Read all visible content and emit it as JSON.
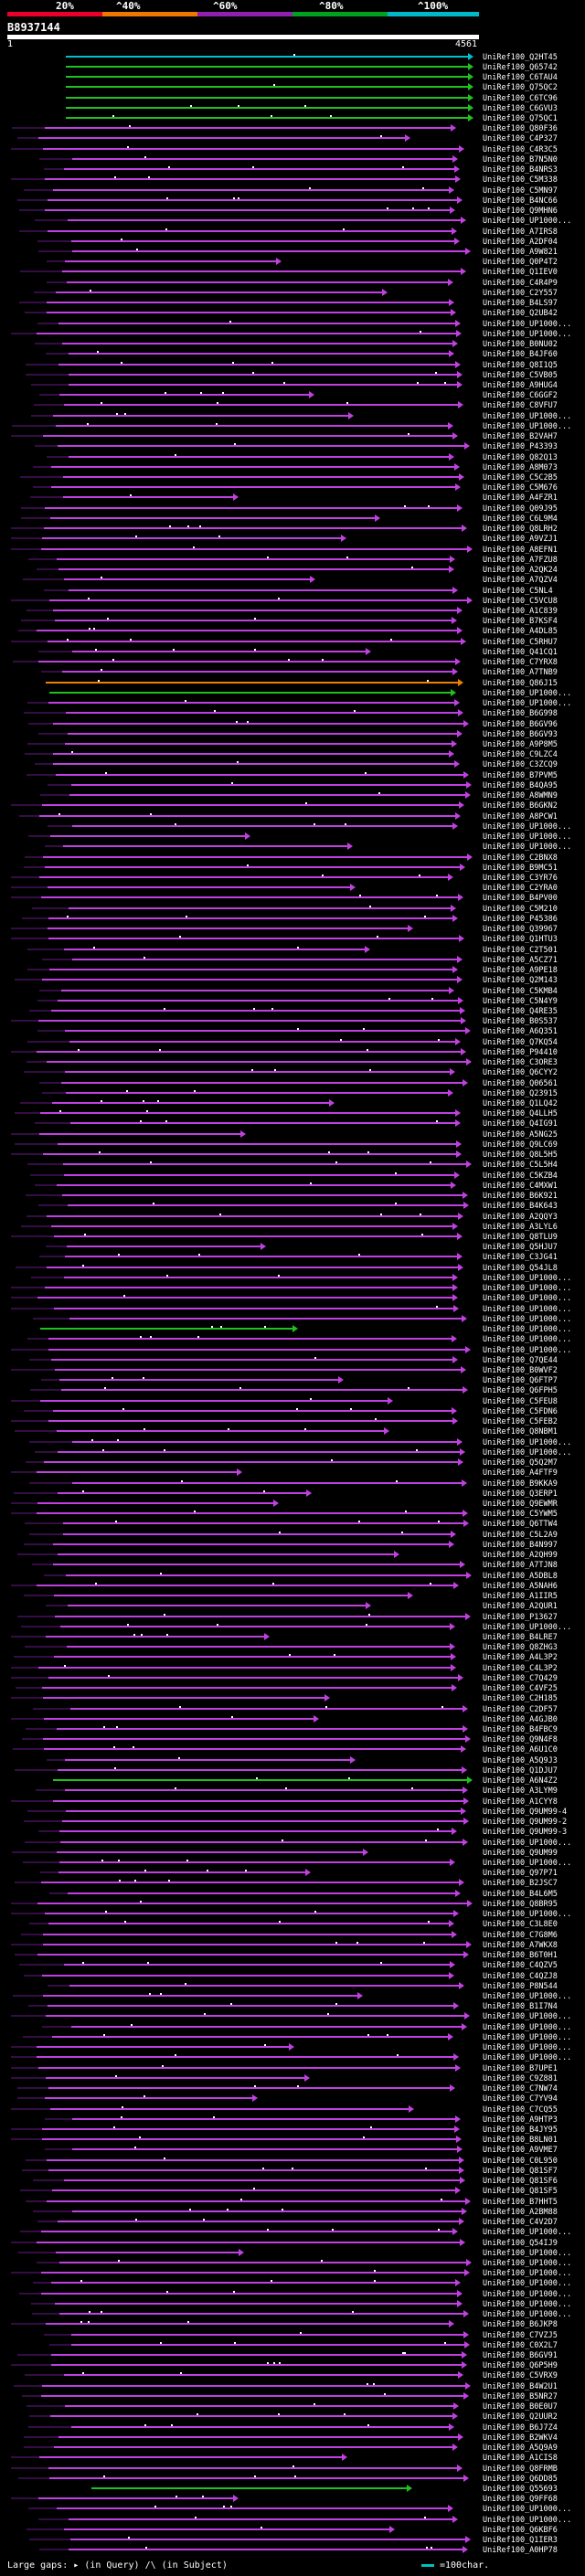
{
  "legend": [
    {
      "label": "20%",
      "color": "#e8002a"
    },
    {
      "label": "^40%",
      "color": "#f07800"
    },
    {
      "label": "^60%",
      "color": "#9020b0"
    },
    {
      "label": "^80%",
      "color": "#00a020"
    },
    {
      "label": "^100%",
      "color": "#00b8c8"
    }
  ],
  "title": "B8937144",
  "ruler": {
    "start": "1",
    "end": "4561"
  },
  "hits": [
    "UniRef100_Q2HT45",
    "UniRef100_Q65742",
    "UniRef100_C6TAU4",
    "UniRef100_Q75QC2",
    "UniRef100_C6TC96",
    "UniRef100_C6GVU3",
    "UniRef100_Q75QC1",
    "UniRef100_Q80F36",
    "UniRef100_C4P327",
    "UniRef100_C4R3C5",
    "UniRef100_B7N5N0",
    "UniRef100_B4NRS3",
    "UniRef100_C5M338",
    "UniRef100_C5MN97",
    "UniRef100_B4NC66",
    "UniRef100_Q9MHN6",
    "UniRef100_UP1000...",
    "UniRef100_A7IRS8",
    "UniRef100_A2DF04",
    "UniRef100_A9W821",
    "UniRef100_Q0P4T2",
    "UniRef100_Q1IEV0",
    "UniRef100_C4R4P9",
    "UniRef100_C2Y557",
    "UniRef100_B4LS97",
    "UniRef100_Q2UB42",
    "UniRef100_UP1000...",
    "UniRef100_UP1000...",
    "UniRef100_B0NU02",
    "UniRef100_B4JF60",
    "UniRef100_Q8I1Q5",
    "UniRef100_C5VB05",
    "UniRef100_A9HUG4",
    "UniRef100_C6GGF2",
    "UniRef100_C8VFU7",
    "UniRef100_UP1000...",
    "UniRef100_UP1000...",
    "UniRef100_B2VAH7",
    "UniRef100_P43393",
    "UniRef100_Q82Q13",
    "UniRef100_A8M073",
    "UniRef100_C5C2B5",
    "UniRef100_C5M676",
    "UniRef100_A4FZR1",
    "UniRef100_Q09J95",
    "UniRef100_C6L9M4",
    "UniRef100_Q8LRH2",
    "UniRef100_A9VZJ1",
    "UniRef100_A8EFN1",
    "UniRef100_A7FZU8",
    "UniRef100_A2QK24",
    "UniRef100_A7QZV4",
    "UniRef100_C5NL4",
    "UniRef100_C5VCU8",
    "UniRef100_A1C839",
    "UniRef100_B7KSF4",
    "UniRef100_A4DL85",
    "UniRef100_C5RHU7",
    "UniRef100_Q41CQ1",
    "UniRef100_C7YRX8",
    "UniRef100_A7TNB9",
    "UniRef100_Q86J15",
    "UniRef100_UP1000...",
    "UniRef100_UP1000...",
    "UniRef100_B6G998",
    "UniRef100_B6GV96",
    "UniRef100_B6GV93",
    "UniRef100_A9P8M5",
    "UniRef100_C9LZC4",
    "UniRef100_C3ZCQ9",
    "UniRef100_B7PVM5",
    "UniRef100_B4QA95",
    "UniRef100_A8WMN9",
    "UniRef100_B6GKN2",
    "UniRef100_A8PCW1",
    "UniRef100_UP1000...",
    "UniRef100_UP1000...",
    "UniRef100_UP1000...",
    "UniRef100_C2BNX8",
    "UniRef100_B9MC51",
    "UniRef100_C3YR76",
    "UniRef100_C2YRA0",
    "UniRef100_B4PV00",
    "UniRef100_C5M210",
    "UniRef100_P45386",
    "UniRef100_Q39967",
    "UniRef100_Q1HTU3",
    "UniRef100_C2T501",
    "UniRef100_A5CZ71",
    "UniRef100_A9PE18",
    "UniRef100_Q2M143",
    "UniRef100_C5KMB4",
    "UniRef100_C5N4Y9",
    "UniRef100_Q4RE35",
    "UniRef100_B0S537",
    "UniRef100_A6Q351",
    "UniRef100_Q7KQ54",
    "UniRef100_P94410",
    "UniRef100_C3ORE3",
    "UniRef100_Q6CYY2",
    "UniRef100_Q06561",
    "UniRef100_Q23915",
    "UniRef100_Q1LQ42",
    "UniRef100_Q4LLH5",
    "UniRef100_Q4IG91",
    "UniRef100_A5NG25",
    "UniRef100_Q9LC69",
    "UniRef100_Q8L5H5",
    "UniRef100_C5L5H4",
    "UniRef100_C5KZB4",
    "UniRef100_C4MXW1",
    "UniRef100_B6K921",
    "UniRef100_B4K643",
    "UniRef100_A2QQY3",
    "UniRef100_A3LYL6",
    "UniRef100_Q8TLU9",
    "UniRef100_Q5HJU7",
    "UniRef100_C3JG41",
    "UniRef100_Q54JL8",
    "UniRef100_UP1000...",
    "UniRef100_UP1000...",
    "UniRef100_UP1000...",
    "UniRef100_UP1000...",
    "UniRef100_UP1000...",
    "UniRef100_UP1000...",
    "UniRef100_UP1000...",
    "UniRef100_UP1000...",
    "UniRef100_Q7QE44",
    "UniRef100_B0WVF2",
    "UniRef100_Q6FTP7",
    "UniRef100_Q6FPH5",
    "UniRef100_C5FEU8",
    "UniRef100_C5FDN6",
    "UniRef100_C5FEB2",
    "UniRef100_Q8NBM1",
    "UniRef100_UP1000...",
    "UniRef100_UP1000...",
    "UniRef100_Q5Q2M7",
    "UniRef100_A4FTF9",
    "UniRef100_B9KKA9",
    "UniRef100_Q3ERP1",
    "UniRef100_Q9EWMR",
    "UniRef100_C5YWM5",
    "UniRef100_Q6TTW4",
    "UniRef100_C5L2A9",
    "UniRef100_B4N997",
    "UniRef100_A2QH99",
    "UniRef100_A7TJN8",
    "UniRef100_A5DBL8",
    "UniRef100_A5NAH6",
    "UniRef100_A1IIR5",
    "UniRef100_A2QUR1",
    "UniRef100_P13627",
    "UniRef100_UP1000...",
    "UniRef100_B4LRE7",
    "UniRef100_Q8ZHG3",
    "UniRef100_A4L3P2",
    "UniRef100_C4L3P2",
    "UniRef100_C7Q429",
    "UniRef100_C4VF25",
    "UniRef100_C2H185",
    "UniRef100_C2DF57",
    "UniRef100_A4GJB0",
    "UniRef100_B4FBC9",
    "UniRef100_Q9N4F8",
    "UniRef100_A6U1C0",
    "UniRef100_A5Q9J3",
    "UniRef100_Q1DJU7",
    "UniRef100_A6N4Z2",
    "UniRef100_A3LYM9",
    "UniRef100_A1CYY8",
    "UniRef100_Q9UM99-4",
    "UniRef100_Q9UM99-2",
    "UniRef100_Q9UM99-3",
    "UniRef100_UP1000...",
    "UniRef100_Q9UM99",
    "UniRef100_UP1000...",
    "UniRef100_Q97P71",
    "UniRef100_B2JSC7",
    "UniRef100_B4L6M5",
    "UniRef100_Q8BR95",
    "UniRef100_UP1000...",
    "UniRef100_C3L8E0",
    "UniRef100_C7G8M6",
    "UniRef100_A7WKX8",
    "UniRef100_B6T0H1",
    "UniRef100_C4QZV5",
    "UniRef100_C4QZJ8",
    "UniRef100_P8N544",
    "UniRef100_UP1000...",
    "UniRef100_B1I7N4",
    "UniRef100_UP1000...",
    "UniRef100_UP1000...",
    "UniRef100_UP1000...",
    "UniRef100_UP1000...",
    "UniRef100_UP1000...",
    "UniRef100_B7UPE1",
    "UniRef100_C9Z881",
    "UniRef100_C7NW74",
    "UniRef100_C7YV94",
    "UniRef100_C7CQ55",
    "UniRef100_A9HTP3",
    "UniRef100_B4JY95",
    "UniRef100_B8LN01",
    "UniRef100_A9VME7",
    "UniRef100_C0L950",
    "UniRef100_Q81SF7",
    "UniRef100_Q81SF6",
    "UniRef100_Q81SF5",
    "UniRef100_B7HHT5",
    "UniRef100_A2BM88",
    "UniRef100_C4V2D7",
    "UniRef100_UP1000...",
    "UniRef100_Q54IJ9",
    "UniRef100_UP1000...",
    "UniRef100_UP1000...",
    "UniRef100_UP1000...",
    "UniRef100_UP1000...",
    "UniRef100_UP1000...",
    "UniRef100_UP1000...",
    "UniRef100_UP1000...",
    "UniRef100_B6JKP8",
    "UniRef100_C7VZJ5",
    "UniRef100_C0X2L7",
    "UniRef100_B6GV91",
    "UniRef100_Q6P5H9",
    "UniRef100_C5VRX9",
    "UniRef100_B4W2U1",
    "UniRef100_B5NR27",
    "UniRef100_B0E0U7",
    "UniRef100_Q2UUR2",
    "UniRef100_B6J7Z4",
    "UniRef100_B2WKV4",
    "UniRef100_A5Q9A9",
    "UniRef100_A1CIS8",
    "UniRef100_Q8FRMB",
    "UniRef100_Q6DD85",
    "UniRef100_Q55693",
    "UniRef100_Q9FF68",
    "UniRef100_UP1000...",
    "UniRef100_UP1000...",
    "UniRef100_Q6KBF6",
    "UniRef100_Q1IER3",
    "UniRef100_A0HP78"
  ],
  "footer": {
    "gaps_label": "Large gaps: ",
    "gaps_query": "(in Query)",
    "gaps_subject": "(in Subject)",
    "scale": "=100char."
  }
}
